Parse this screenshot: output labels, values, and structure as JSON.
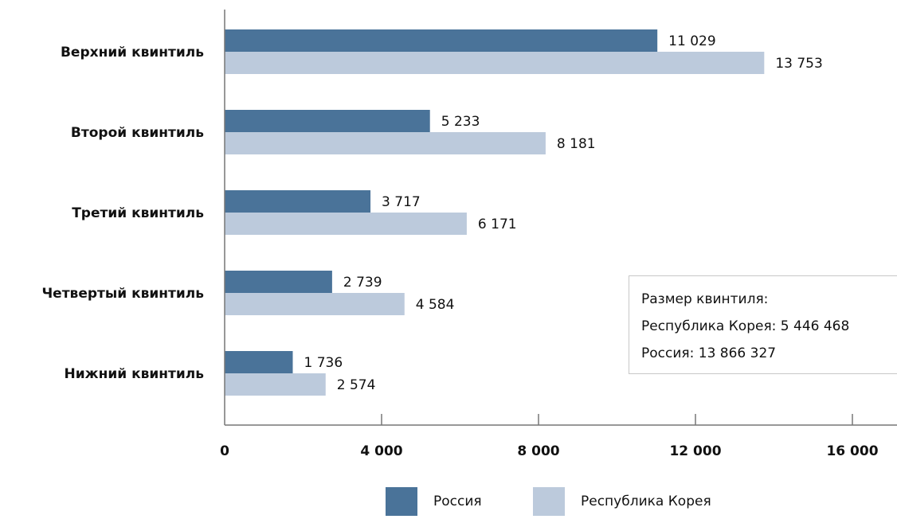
{
  "chart_data": {
    "type": "bar",
    "orientation": "horizontal",
    "categories": [
      "Верхний квинтиль",
      "Второй квинтиль",
      "Третий квинтиль",
      "Четвертый квинтиль",
      "Нижний квинтиль"
    ],
    "series": [
      {
        "name": "Россия",
        "values": [
          11029,
          5233,
          3717,
          2739,
          1736
        ],
        "labels": [
          "11 029",
          "5 233",
          "3 717",
          "2 739",
          "1 736"
        ],
        "color": "#4a7399"
      },
      {
        "name": "Республика Корея",
        "values": [
          13753,
          8181,
          6171,
          4584,
          2574
        ],
        "labels": [
          "13 753",
          "8 181",
          "6 171",
          "4 584",
          "2 574"
        ],
        "color": "#bccadc"
      }
    ],
    "xlim": [
      0,
      16000
    ],
    "xticks": [
      0,
      4000,
      8000,
      12000,
      16000
    ],
    "xtick_labels": [
      "0",
      "4 000",
      "8 000",
      "12 000",
      "16 000"
    ],
    "legend_position": "bottom-center",
    "grid": false
  },
  "note": {
    "lines": [
      "Размер квинтиля:",
      "Республика Корея: 5 446 468",
      "Россия: 13 866 327"
    ]
  },
  "legend": {
    "items": [
      {
        "label": "Россия",
        "color": "#4a7399"
      },
      {
        "label": "Республика Корея",
        "color": "#bccadc"
      }
    ]
  }
}
